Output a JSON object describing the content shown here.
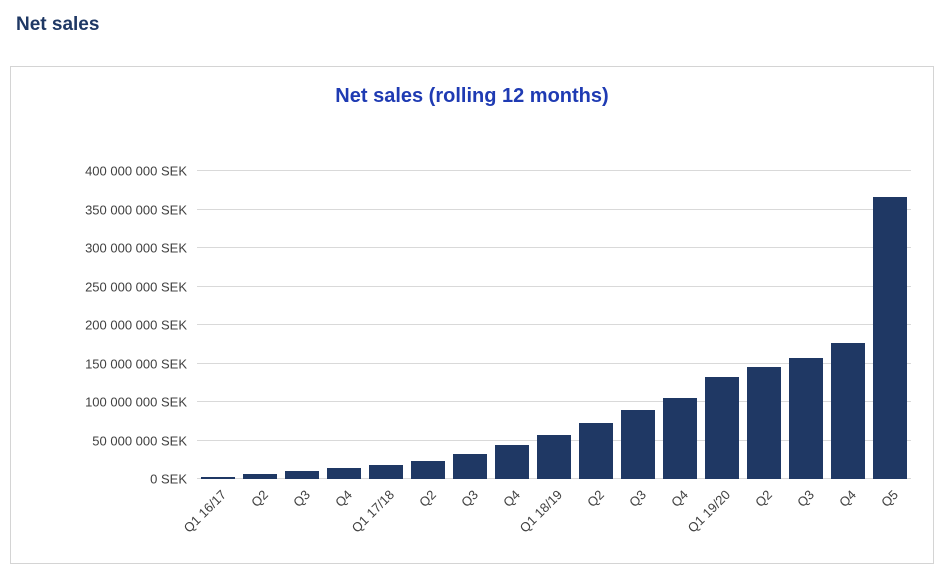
{
  "page": {
    "title": "Net sales"
  },
  "colors": {
    "page_title": "#1f3864",
    "chart_title": "#1f3bb3",
    "axis_text": "#404040",
    "gridline": "#d9d9d9",
    "bar": "#1f3864"
  },
  "chart_data": {
    "type": "bar",
    "title": "Net sales (rolling 12 months)",
    "categories": [
      "Q1 16/17",
      "Q2",
      "Q3",
      "Q4",
      "Q1 17/18",
      "Q2",
      "Q3",
      "Q4",
      "Q1 18/19",
      "Q2",
      "Q3",
      "Q4",
      "Q1 19/20",
      "Q2",
      "Q3",
      "Q4",
      "Q5"
    ],
    "values": [
      3000000,
      6000000,
      10000000,
      14000000,
      18000000,
      23000000,
      32000000,
      44000000,
      57000000,
      73000000,
      90000000,
      105000000,
      132000000,
      145000000,
      157000000,
      177000000,
      366000000
    ],
    "xlabel": "",
    "ylabel": "",
    "ylim": [
      0,
      400000000
    ],
    "grid": true,
    "legend": "none",
    "bar_color": "#1f3864",
    "y_ticks": [
      {
        "value": 400000000,
        "label": "400 000 000 SEK"
      },
      {
        "value": 350000000,
        "label": "350 000 000 SEK"
      },
      {
        "value": 300000000,
        "label": "300 000 000 SEK"
      },
      {
        "value": 250000000,
        "label": "250 000 000 SEK"
      },
      {
        "value": 200000000,
        "label": "200 000 000 SEK"
      },
      {
        "value": 150000000,
        "label": "150 000 000 SEK"
      },
      {
        "value": 100000000,
        "label": "100 000 000 SEK"
      },
      {
        "value": 50000000,
        "label": "50 000 000 SEK"
      },
      {
        "value": 0,
        "label": "0 SEK"
      }
    ]
  }
}
